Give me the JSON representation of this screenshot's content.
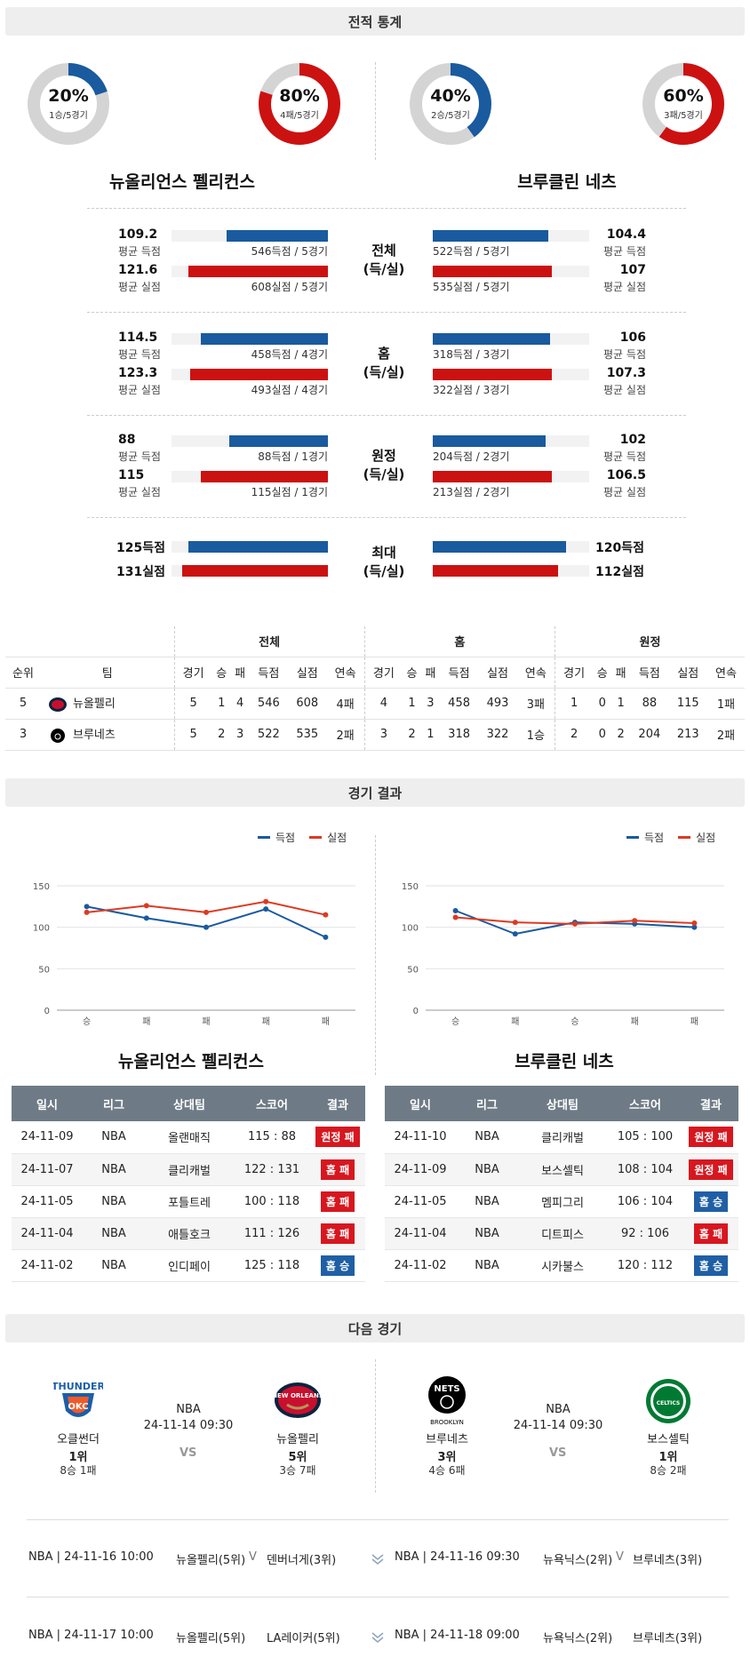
{
  "sections": {
    "stats": "전적 통계",
    "results": "경기 결과",
    "next": "다음 경기"
  },
  "donuts": [
    {
      "pct": "20%",
      "sub": "1승/5경기",
      "value": 20,
      "color": "#1a5a9e"
    },
    {
      "pct": "80%",
      "sub": "4패/5경기",
      "value": 80,
      "color": "#cc1111"
    },
    {
      "pct": "40%",
      "sub": "2승/5경기",
      "value": 40,
      "color": "#1a5a9e"
    },
    {
      "pct": "60%",
      "sub": "3패/5경기",
      "value": 60,
      "color": "#cc1111"
    }
  ],
  "teams": {
    "left": "뉴올리언스 펠리컨스",
    "right": "브루클린 네츠"
  },
  "stat_groups": [
    {
      "label": [
        "전체",
        "(득/실)"
      ],
      "left": [
        {
          "num": "109.2",
          "lbl": "평균 득점",
          "det": "546득점 / 5경기",
          "ratio": 0.65
        },
        {
          "num": "121.6",
          "lbl": "평균 실점",
          "det": "608실점 / 5경기",
          "ratio": 0.89
        }
      ],
      "right": [
        {
          "num": "104.4",
          "lbl": "평균 득점",
          "det": "522득점 / 5경기",
          "ratio": 0.74
        },
        {
          "num": "107",
          "lbl": "평균 실점",
          "det": "535실점 / 5경기",
          "ratio": 0.76
        }
      ]
    },
    {
      "label": [
        "홈",
        "(득/실)"
      ],
      "left": [
        {
          "num": "114.5",
          "lbl": "평균 득점",
          "det": "458득점 / 4경기",
          "ratio": 0.81
        },
        {
          "num": "123.3",
          "lbl": "평균 실점",
          "det": "493실점 / 4경기",
          "ratio": 0.88
        }
      ],
      "right": [
        {
          "num": "106",
          "lbl": "평균 득점",
          "det": "318득점 / 3경기",
          "ratio": 0.75
        },
        {
          "num": "107.3",
          "lbl": "평균 실점",
          "det": "322실점 / 3경기",
          "ratio": 0.76
        }
      ]
    },
    {
      "label": [
        "원정",
        "(득/실)"
      ],
      "left": [
        {
          "num": "88",
          "lbl": "평균 득점",
          "det": "88득점 / 1경기",
          "ratio": 0.63
        },
        {
          "num": "115",
          "lbl": "평균 실점",
          "det": "115실점 / 1경기",
          "ratio": 0.81
        }
      ],
      "right": [
        {
          "num": "102",
          "lbl": "평균 득점",
          "det": "204득점 / 2경기",
          "ratio": 0.72
        },
        {
          "num": "106.5",
          "lbl": "평균 실점",
          "det": "213실점 / 2경기",
          "ratio": 0.76
        }
      ]
    }
  ],
  "max_group": {
    "label": [
      "최대",
      "(득/실)"
    ],
    "left": [
      {
        "num": "125득점",
        "ratio": 0.89
      },
      {
        "num": "131실점",
        "ratio": 0.93
      }
    ],
    "right": [
      {
        "num": "120득점",
        "ratio": 0.85
      },
      {
        "num": "112실점",
        "ratio": 0.8
      }
    ]
  },
  "standings": {
    "groups": [
      "전체",
      "홈",
      "원정"
    ],
    "headers": [
      "순위",
      "팀",
      "경기",
      "승",
      "패",
      "득점",
      "실점",
      "연속",
      "경기",
      "승",
      "패",
      "득점",
      "실점",
      "연속",
      "경기",
      "승",
      "패",
      "득점",
      "실점",
      "연속"
    ],
    "rows": [
      {
        "rank": "5",
        "team": "뉴올펠리",
        "cells": [
          "5",
          "1",
          "4",
          "546",
          "608",
          "4패",
          "4",
          "1",
          "3",
          "458",
          "493",
          "3패",
          "1",
          "0",
          "1",
          "88",
          "115",
          "1패"
        ]
      },
      {
        "rank": "3",
        "team": "브루네츠",
        "cells": [
          "5",
          "2",
          "3",
          "522",
          "535",
          "2패",
          "3",
          "2",
          "1",
          "318",
          "322",
          "1승",
          "2",
          "0",
          "2",
          "204",
          "213",
          "2패"
        ]
      }
    ]
  },
  "legend": {
    "scored": "득점",
    "conceded": "실점",
    "scored_color": "#1a5a9e",
    "conceded_color": "#dd3a22"
  },
  "chart_data": [
    {
      "type": "line",
      "categories": [
        "승",
        "패",
        "패",
        "패",
        "패"
      ],
      "series": [
        {
          "name": "득점",
          "values": [
            125,
            111,
            100,
            122,
            88
          ]
        },
        {
          "name": "실점",
          "values": [
            118,
            126,
            118,
            131,
            115
          ]
        }
      ],
      "yticks": [
        0,
        50,
        100,
        150
      ],
      "ylim": [
        0,
        150
      ],
      "legend": "top-right",
      "grid": true
    },
    {
      "type": "line",
      "categories": [
        "승",
        "패",
        "승",
        "패",
        "패"
      ],
      "series": [
        {
          "name": "득점",
          "values": [
            120,
            92,
            106,
            104,
            100
          ]
        },
        {
          "name": "실점",
          "values": [
            112,
            106,
            104,
            108,
            105
          ]
        }
      ],
      "yticks": [
        0,
        50,
        100,
        150
      ],
      "ylim": [
        0,
        150
      ],
      "legend": "top-right",
      "grid": true
    }
  ],
  "results_headers": [
    "일시",
    "리그",
    "상대팀",
    "스코어",
    "결과"
  ],
  "results_left": [
    {
      "date": "24-11-09",
      "league": "NBA",
      "opp": "올랜매직",
      "score": "115 : 88",
      "result": "원정 패",
      "kind": "loss"
    },
    {
      "date": "24-11-07",
      "league": "NBA",
      "opp": "클리캐벌",
      "score": "122 : 131",
      "result": "홈 패",
      "kind": "loss"
    },
    {
      "date": "24-11-05",
      "league": "NBA",
      "opp": "포틀트레",
      "score": "100 : 118",
      "result": "홈 패",
      "kind": "loss"
    },
    {
      "date": "24-11-04",
      "league": "NBA",
      "opp": "애틀호크",
      "score": "111 : 126",
      "result": "홈 패",
      "kind": "loss"
    },
    {
      "date": "24-11-02",
      "league": "NBA",
      "opp": "인디페이",
      "score": "125 : 118",
      "result": "홈 승",
      "kind": "win"
    }
  ],
  "results_right": [
    {
      "date": "24-11-10",
      "league": "NBA",
      "opp": "클리캐벌",
      "score": "105 : 100",
      "result": "원정 패",
      "kind": "loss"
    },
    {
      "date": "24-11-09",
      "league": "NBA",
      "opp": "보스셀틱",
      "score": "108 : 104",
      "result": "원정 패",
      "kind": "loss"
    },
    {
      "date": "24-11-05",
      "league": "NBA",
      "opp": "멤피그리",
      "score": "106 : 104",
      "result": "홈 승",
      "kind": "win"
    },
    {
      "date": "24-11-04",
      "league": "NBA",
      "opp": "디트피스",
      "score": "92 : 106",
      "result": "홈 패",
      "kind": "loss"
    },
    {
      "date": "24-11-02",
      "league": "NBA",
      "opp": "시카불스",
      "score": "120 : 112",
      "result": "홈 승",
      "kind": "win"
    }
  ],
  "next_games": [
    {
      "league": "NBA",
      "datetime": "24-11-14 09:30",
      "vs": "VS",
      "away": {
        "name": "오클썬더",
        "rank": "1위",
        "record": "8승 1패",
        "logo": "THUNDER"
      },
      "home": {
        "name": "뉴올펠리",
        "rank": "5위",
        "record": "3승 7패",
        "logo": "NEW ORLEANS"
      }
    },
    {
      "league": "NBA",
      "datetime": "24-11-14 09:30",
      "vs": "VS",
      "away": {
        "name": "브루네츠",
        "rank": "3위",
        "record": "4승 6패",
        "logo": "NETS"
      },
      "home": {
        "name": "보스셀틱",
        "rank": "1위",
        "record": "8승 2패",
        "logo": "CELTICS"
      }
    }
  ],
  "upcoming": [
    {
      "left": {
        "info": "NBA | 24-11-16 10:00",
        "team1": "뉴올펠리(5위)",
        "team2": "덴버너게(3위)"
      },
      "right": {
        "info": "NBA | 24-11-16 09:30",
        "team1": "뉴욕닉스(2위)",
        "team2": "브루네츠(3위)"
      }
    },
    {
      "left": {
        "info": "NBA | 24-11-17 10:00",
        "team1": "뉴올펠리(5위)",
        "team2": "LA레이커(5위)"
      },
      "right": {
        "info": "NBA | 24-11-18 09:00",
        "team1": "뉴욕닉스(2위)",
        "team2": "브루네츠(3위)"
      }
    }
  ]
}
